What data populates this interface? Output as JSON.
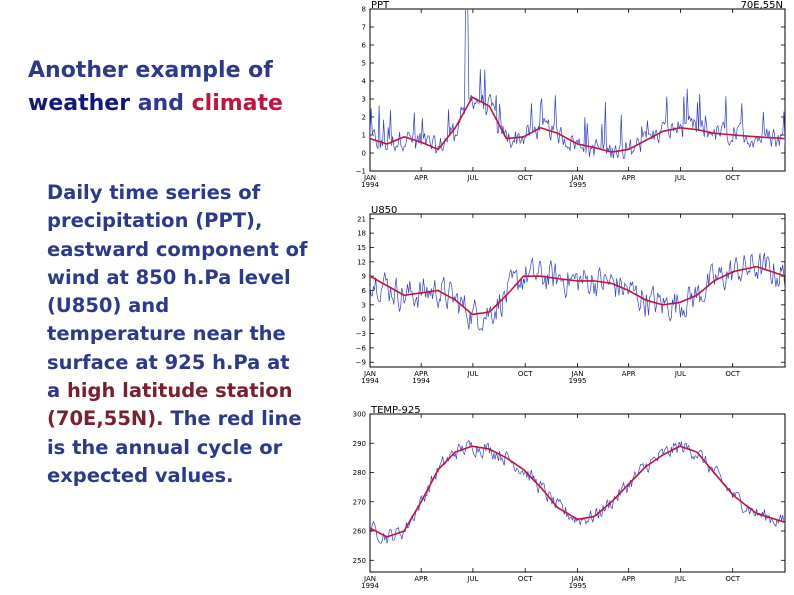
{
  "slide": {
    "title_part1": "Another example of",
    "title_weather": "weather",
    "title_and": " and ",
    "title_climate": "climate",
    "body_1": "Daily time series of precipitation (PPT), eastward component of wind at 850 h.Pa level (U850) and temperature near the surface at 925 h.Pa  at a ",
    "body_high": "high latitude station (70E,55N)",
    "body_dot": ".",
    "body_2": " The red line is the annual cycle or expected values",
    "body_end": "."
  },
  "colors": {
    "daily": "#2f3fd6",
    "annual_cycle": "#c0143c",
    "title": "#2b3a8c"
  },
  "chart_data": [
    {
      "type": "line",
      "title": "PPT",
      "location_label": "70E,55N",
      "ylim": [
        -1,
        8
      ],
      "yticks": [
        -1,
        0,
        1,
        2,
        3,
        4,
        5,
        6,
        7,
        8
      ],
      "x_range_days": [
        0,
        730
      ],
      "x_ticks": [
        {
          "day": 0,
          "label": "JAN",
          "sub": "1994"
        },
        {
          "day": 90,
          "label": "APR",
          "sub": ""
        },
        {
          "day": 181,
          "label": "JUL",
          "sub": ""
        },
        {
          "day": 273,
          "label": "OCT",
          "sub": ""
        },
        {
          "day": 365,
          "label": "JAN",
          "sub": "1995"
        },
        {
          "day": 455,
          "label": "APR",
          "sub": ""
        },
        {
          "day": 546,
          "label": "JUL",
          "sub": ""
        },
        {
          "day": 638,
          "label": "OCT",
          "sub": ""
        }
      ],
      "series": [
        {
          "name": "annual cycle",
          "x": [
            0,
            30,
            60,
            90,
            120,
            150,
            180,
            210,
            240,
            270,
            300,
            330,
            365,
            395,
            425,
            455,
            485,
            515,
            545,
            575,
            605,
            640,
            680,
            730
          ],
          "values": [
            0.8,
            0.5,
            0.9,
            0.6,
            0.2,
            1.4,
            3.1,
            2.6,
            0.8,
            0.9,
            1.4,
            1.1,
            0.5,
            0.3,
            0.05,
            0.2,
            0.7,
            1.2,
            1.4,
            1.3,
            1.1,
            1.0,
            0.9,
            0.8
          ]
        },
        {
          "name": "daily",
          "x": [
            0,
            30,
            60,
            90,
            120,
            150,
            180,
            210,
            240,
            270,
            300,
            330,
            365,
            395,
            425,
            455,
            485,
            515,
            545,
            575,
            605,
            640,
            680,
            730
          ],
          "values": [
            0.8,
            0.5,
            0.9,
            0.6,
            0.2,
            1.4,
            3.1,
            2.6,
            0.8,
            0.9,
            1.4,
            1.1,
            0.5,
            0.3,
            0.05,
            0.2,
            0.7,
            1.2,
            1.4,
            1.3,
            1.1,
            1.0,
            0.9,
            0.8
          ],
          "noise": 0.9,
          "peak_day": 170,
          "peak_value": 8
        }
      ]
    },
    {
      "type": "line",
      "title": "U850",
      "ylim": [
        -10,
        22
      ],
      "yticks": [
        -9,
        -6,
        -3,
        0,
        3,
        6,
        9,
        12,
        15,
        18,
        21
      ],
      "x_range_days": [
        0,
        730
      ],
      "x_ticks": [
        {
          "day": 0,
          "label": "JAN",
          "sub": "1994"
        },
        {
          "day": 90,
          "label": "APR",
          "sub": "1994"
        },
        {
          "day": 181,
          "label": "JUL",
          "sub": ""
        },
        {
          "day": 273,
          "label": "OCT",
          "sub": ""
        },
        {
          "day": 365,
          "label": "JAN",
          "sub": "1995"
        },
        {
          "day": 455,
          "label": "APR",
          "sub": ""
        },
        {
          "day": 546,
          "label": "JUL",
          "sub": ""
        },
        {
          "day": 638,
          "label": "OCT",
          "sub": ""
        }
      ],
      "series": [
        {
          "name": "annual cycle",
          "x": [
            0,
            30,
            60,
            90,
            120,
            150,
            180,
            210,
            240,
            270,
            300,
            330,
            365,
            395,
            425,
            455,
            485,
            515,
            545,
            575,
            605,
            640,
            680,
            730
          ],
          "values": [
            9,
            7,
            5,
            5.5,
            6,
            4,
            1,
            1.5,
            5,
            9,
            9,
            8.5,
            8,
            8,
            7.5,
            6,
            4,
            3,
            3.5,
            5,
            8,
            10,
            11,
            9
          ]
        },
        {
          "name": "daily",
          "x": [
            0,
            30,
            60,
            90,
            120,
            150,
            180,
            210,
            240,
            270,
            300,
            330,
            365,
            395,
            425,
            455,
            485,
            515,
            545,
            575,
            605,
            640,
            680,
            730
          ],
          "values": [
            9,
            7,
            5,
            5.5,
            6,
            4,
            1,
            1.5,
            5,
            9,
            9,
            8.5,
            8,
            8,
            7.5,
            6,
            4,
            3,
            3.5,
            5,
            8,
            10,
            11,
            9
          ],
          "noise": 5
        }
      ]
    },
    {
      "type": "line",
      "title": "TEMP-925",
      "ylim": [
        246,
        300
      ],
      "yticks": [
        250,
        260,
        270,
        280,
        290,
        300
      ],
      "x_range_days": [
        0,
        730
      ],
      "x_ticks": [
        {
          "day": 0,
          "label": "JAN",
          "sub": "1994"
        },
        {
          "day": 90,
          "label": "APR",
          "sub": ""
        },
        {
          "day": 181,
          "label": "JUL",
          "sub": ""
        },
        {
          "day": 273,
          "label": "OCT",
          "sub": ""
        },
        {
          "day": 365,
          "label": "JAN",
          "sub": "1995"
        },
        {
          "day": 455,
          "label": "APR",
          "sub": ""
        },
        {
          "day": 546,
          "label": "JUL",
          "sub": ""
        },
        {
          "day": 638,
          "label": "OCT",
          "sub": ""
        }
      ],
      "series": [
        {
          "name": "annual cycle",
          "x": [
            0,
            30,
            60,
            90,
            120,
            150,
            180,
            210,
            240,
            270,
            300,
            330,
            365,
            395,
            425,
            455,
            485,
            515,
            545,
            575,
            605,
            640,
            680,
            730
          ],
          "values": [
            261,
            258,
            260,
            270,
            281,
            287,
            289,
            288,
            285,
            281,
            275,
            268,
            264,
            265,
            270,
            276,
            282,
            286,
            289,
            287,
            280,
            272,
            266,
            263
          ]
        },
        {
          "name": "daily",
          "x": [
            0,
            30,
            60,
            90,
            120,
            150,
            180,
            210,
            240,
            270,
            300,
            330,
            365,
            395,
            425,
            455,
            485,
            515,
            545,
            575,
            605,
            640,
            680,
            730
          ],
          "values": [
            261,
            258,
            260,
            270,
            281,
            287,
            289,
            288,
            285,
            281,
            275,
            268,
            264,
            265,
            270,
            276,
            282,
            286,
            289,
            287,
            280,
            272,
            266,
            263
          ],
          "noise": 4
        }
      ]
    }
  ]
}
